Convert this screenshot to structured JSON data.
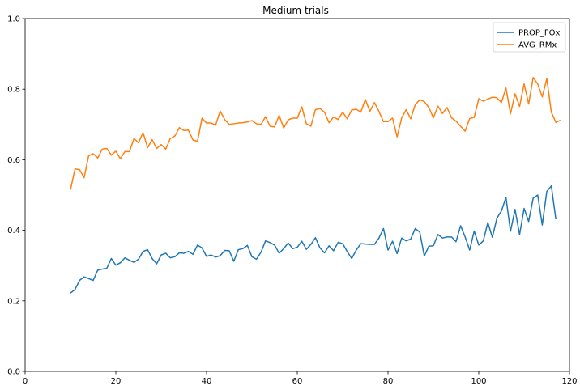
{
  "chart_data": {
    "type": "line",
    "title": "Medium trials",
    "xlabel": "",
    "ylabel": "",
    "xlim": [
      0,
      120
    ],
    "ylim": [
      0,
      1.0
    ],
    "xticks": [
      0,
      20,
      40,
      60,
      80,
      100,
      120
    ],
    "yticks": [
      0.0,
      0.2,
      0.4,
      0.6,
      0.8,
      1.0
    ],
    "xtick_labels": [
      "0",
      "20",
      "40",
      "60",
      "80",
      "100",
      "120"
    ],
    "ytick_labels": [
      "0.0",
      "0.2",
      "0.4",
      "0.6",
      "0.8",
      "1.0"
    ],
    "grid": false,
    "legend_position": "top-right",
    "x_start": 10,
    "x_step": 1,
    "series": [
      {
        "name": "PROP_FOx",
        "color": "#1f77b4",
        "values": [
          0.222,
          0.232,
          0.258,
          0.268,
          0.263,
          0.258,
          0.287,
          0.29,
          0.292,
          0.32,
          0.301,
          0.308,
          0.322,
          0.315,
          0.309,
          0.318,
          0.34,
          0.345,
          0.32,
          0.305,
          0.33,
          0.335,
          0.322,
          0.325,
          0.336,
          0.335,
          0.34,
          0.332,
          0.358,
          0.35,
          0.326,
          0.33,
          0.324,
          0.328,
          0.343,
          0.342,
          0.312,
          0.345,
          0.348,
          0.357,
          0.325,
          0.318,
          0.338,
          0.37,
          0.365,
          0.358,
          0.335,
          0.348,
          0.364,
          0.348,
          0.352,
          0.369,
          0.346,
          0.36,
          0.379,
          0.35,
          0.336,
          0.356,
          0.342,
          0.366,
          0.362,
          0.34,
          0.32,
          0.344,
          0.362,
          0.361,
          0.36,
          0.36,
          0.378,
          0.405,
          0.344,
          0.369,
          0.334,
          0.378,
          0.37,
          0.375,
          0.405,
          0.395,
          0.327,
          0.355,
          0.356,
          0.388,
          0.378,
          0.381,
          0.381,
          0.368,
          0.413,
          0.381,
          0.344,
          0.398,
          0.358,
          0.37,
          0.422,
          0.38,
          0.434,
          0.455,
          0.493,
          0.397,
          0.459,
          0.388,
          0.462,
          0.425,
          0.491,
          0.5,
          0.415,
          0.51,
          0.526,
          0.431
        ]
      },
      {
        "name": "AVG_RMx",
        "color": "#ff7f0e",
        "values": [
          0.515,
          0.574,
          0.572,
          0.549,
          0.611,
          0.617,
          0.605,
          0.63,
          0.632,
          0.613,
          0.624,
          0.603,
          0.623,
          0.623,
          0.66,
          0.648,
          0.677,
          0.634,
          0.657,
          0.632,
          0.643,
          0.63,
          0.66,
          0.667,
          0.691,
          0.683,
          0.684,
          0.656,
          0.652,
          0.718,
          0.704,
          0.704,
          0.698,
          0.738,
          0.714,
          0.7,
          0.702,
          0.704,
          0.705,
          0.707,
          0.711,
          0.702,
          0.7,
          0.722,
          0.695,
          0.693,
          0.726,
          0.69,
          0.713,
          0.718,
          0.718,
          0.75,
          0.702,
          0.695,
          0.742,
          0.745,
          0.735,
          0.705,
          0.721,
          0.714,
          0.735,
          0.716,
          0.741,
          0.743,
          0.735,
          0.771,
          0.737,
          0.762,
          0.737,
          0.708,
          0.708,
          0.718,
          0.665,
          0.718,
          0.742,
          0.716,
          0.756,
          0.77,
          0.765,
          0.748,
          0.719,
          0.752,
          0.731,
          0.748,
          0.719,
          0.709,
          0.695,
          0.681,
          0.717,
          0.72,
          0.773,
          0.766,
          0.772,
          0.777,
          0.776,
          0.762,
          0.803,
          0.73,
          0.787,
          0.751,
          0.815,
          0.758,
          0.833,
          0.815,
          0.778,
          0.83,
          0.735,
          0.706,
          0.712
        ]
      }
    ]
  }
}
